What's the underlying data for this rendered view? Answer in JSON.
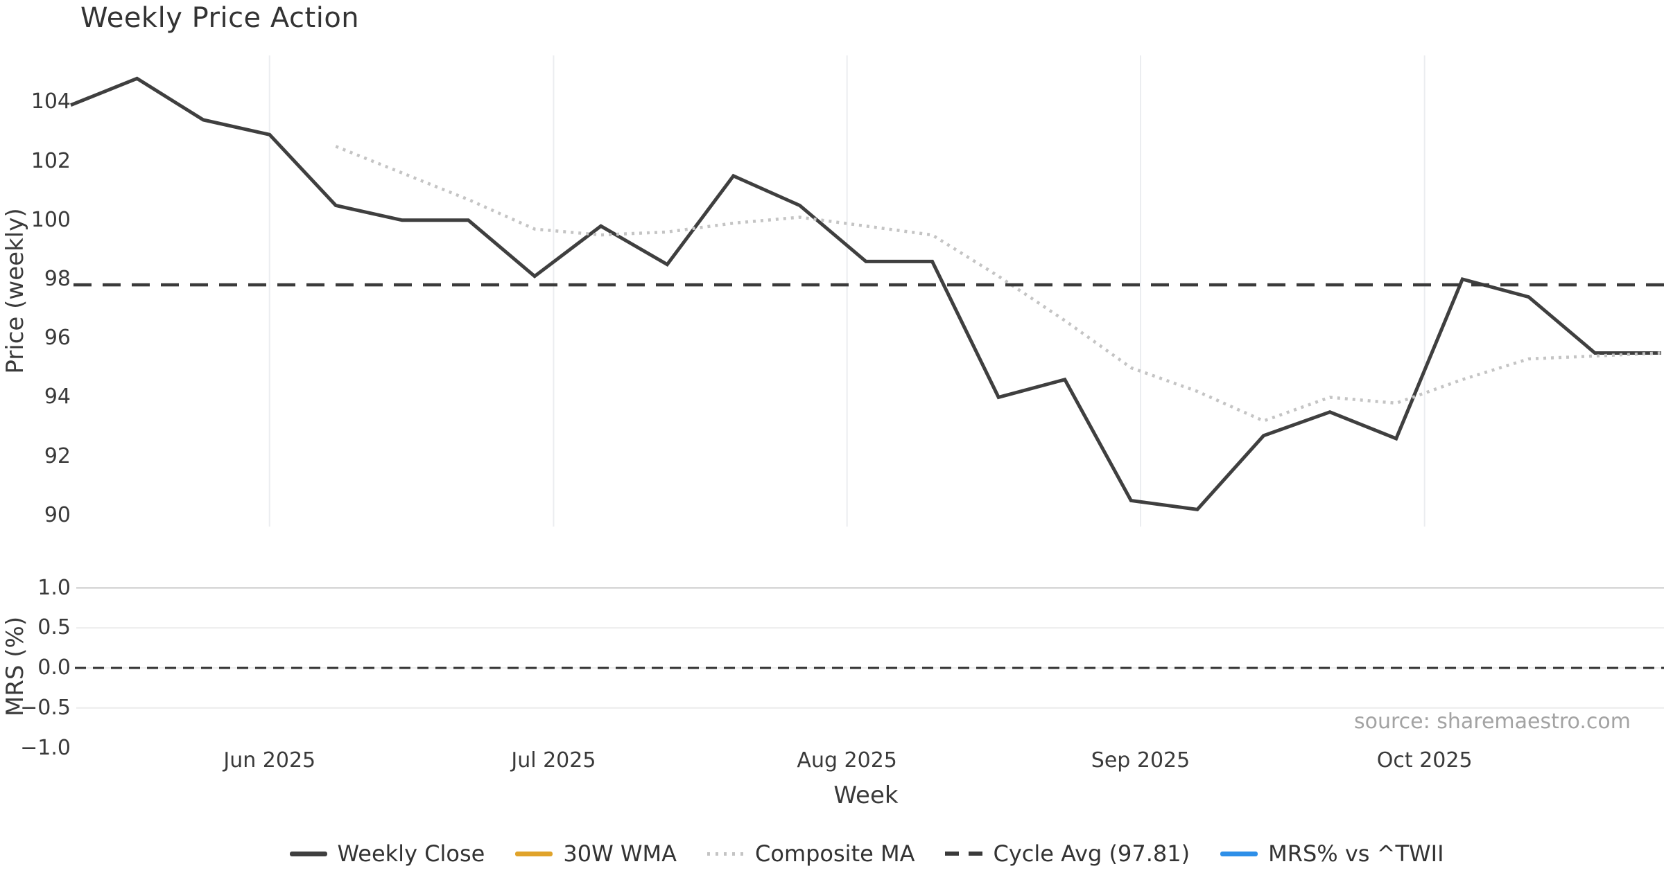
{
  "chart_data": {
    "type": "line",
    "title": "Weekly Price Action",
    "xlabel": "Week",
    "source": "source: sharemaestro.com",
    "price_panel": {
      "ylabel": "Price (weekly)",
      "ylim": [
        89.5,
        105.6
      ],
      "ticks": [
        {
          "label": "104",
          "value": 104
        },
        {
          "label": "102",
          "value": 102
        },
        {
          "label": "100",
          "value": 100
        },
        {
          "label": "98",
          "value": 98
        },
        {
          "label": "96",
          "value": 96
        },
        {
          "label": "94",
          "value": 94
        },
        {
          "label": "92",
          "value": 92
        },
        {
          "label": "90",
          "value": 90
        }
      ],
      "grid": "vertical-months-only"
    },
    "mrs_panel": {
      "ylabel": "MRS (%)",
      "ylim": [
        -1.05,
        1.05
      ],
      "ticks": [
        {
          "label": "1.0",
          "value": 1.0,
          "grid": "strong"
        },
        {
          "label": "0.5",
          "value": 0.5,
          "grid": "light"
        },
        {
          "label": "0.0",
          "value": 0.0,
          "grid": "light"
        },
        {
          "label": "−0.5",
          "value": -0.5,
          "grid": "light"
        },
        {
          "label": "−1.0",
          "value": -1.0,
          "grid": "none"
        }
      ],
      "zero_line": {
        "value": 0.0,
        "style": "dashed",
        "color": "#2f2f2f"
      }
    },
    "x": [
      "2025-05-11",
      "2025-05-18",
      "2025-05-25",
      "2025-06-01",
      "2025-06-08",
      "2025-06-15",
      "2025-06-22",
      "2025-06-29",
      "2025-07-06",
      "2025-07-13",
      "2025-07-20",
      "2025-07-27",
      "2025-08-03",
      "2025-08-10",
      "2025-08-17",
      "2025-08-24",
      "2025-08-31",
      "2025-09-07",
      "2025-09-14",
      "2025-09-21",
      "2025-09-28",
      "2025-10-05",
      "2025-10-12",
      "2025-10-19",
      "2025-10-26"
    ],
    "x_ticks": [
      {
        "label": "Jun 2025",
        "week_index": 3.0
      },
      {
        "label": "Jul 2025",
        "week_index": 7.286
      },
      {
        "label": "Aug 2025",
        "week_index": 11.714
      },
      {
        "label": "Sep 2025",
        "week_index": 16.143
      },
      {
        "label": "Oct 2025",
        "week_index": 20.429
      }
    ],
    "series": [
      {
        "name": "Weekly Close",
        "panel": "price",
        "style": "solid",
        "color": "#3f3f3f",
        "values": [
          103.9,
          104.8,
          103.4,
          102.9,
          100.5,
          100.0,
          100.0,
          98.1,
          99.8,
          98.5,
          101.5,
          100.5,
          98.6,
          98.6,
          94.0,
          94.6,
          90.5,
          90.2,
          92.7,
          93.5,
          92.6,
          98.0,
          97.4,
          95.5,
          95.5
        ]
      },
      {
        "name": "30W WMA",
        "panel": "price",
        "style": "solid",
        "color": "#E0A32A",
        "values": [
          null,
          null,
          null,
          null,
          null,
          null,
          null,
          null,
          null,
          null,
          null,
          null,
          null,
          null,
          null,
          null,
          null,
          null,
          null,
          null,
          null,
          null,
          null,
          null,
          null
        ]
      },
      {
        "name": "Composite MA",
        "panel": "price",
        "style": "dotted",
        "color": "#c4c4c4",
        "values": [
          null,
          null,
          null,
          null,
          102.5,
          101.6,
          100.7,
          99.7,
          99.5,
          99.6,
          99.9,
          100.1,
          99.8,
          99.5,
          98.1,
          96.6,
          95.0,
          94.2,
          93.2,
          94.0,
          93.8,
          94.6,
          95.3,
          95.4,
          95.5
        ]
      },
      {
        "name": "Cycle Avg (97.81)",
        "panel": "price",
        "style": "dashed",
        "color": "#3a3a3a",
        "ref_value": 97.81,
        "values": []
      },
      {
        "name": "MRS% vs ^TWII",
        "panel": "mrs",
        "style": "solid",
        "color": "#2E8FE8",
        "values": [
          null,
          null,
          null,
          null,
          null,
          null,
          null,
          null,
          null,
          null,
          null,
          null,
          null,
          null,
          null,
          null,
          null,
          null,
          null,
          null,
          null,
          null,
          null,
          null,
          null
        ]
      }
    ],
    "legend_position": "bottom-center",
    "colors": {
      "background": "#ffffff",
      "month_gridline": "#ebedf0",
      "mrs_grid_strong": "#c9c9c9",
      "mrs_grid_light": "#ececec",
      "tick_text": "#3a3a3a",
      "title_text": "#333333",
      "source_text": "#a3a3a3"
    }
  }
}
